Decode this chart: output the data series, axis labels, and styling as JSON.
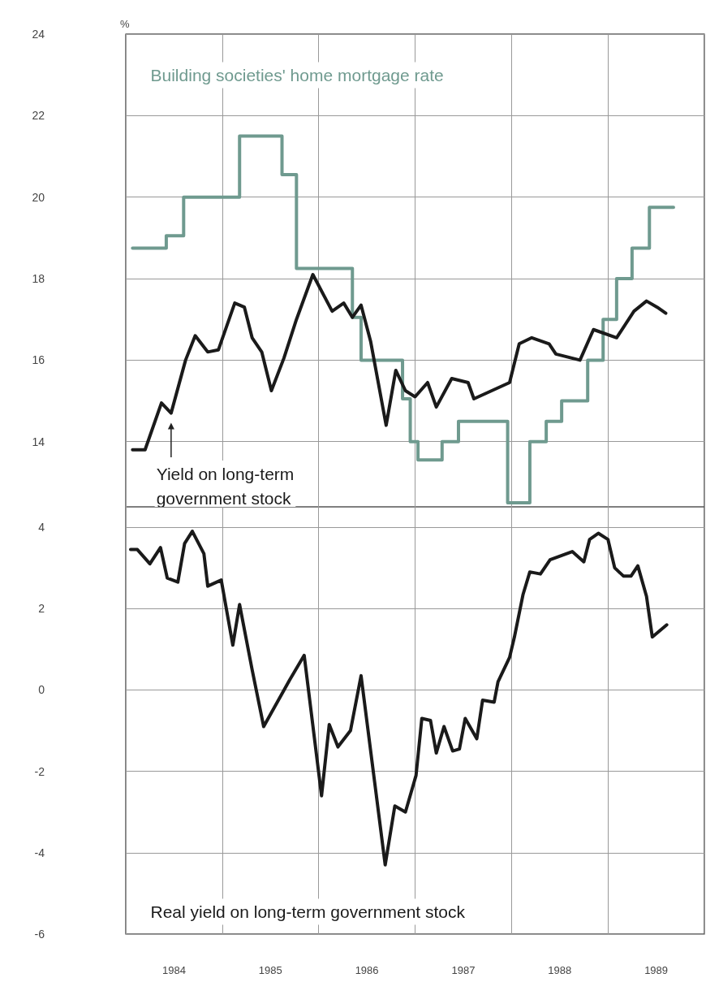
{
  "chart_data": [
    {
      "type": "line",
      "ylabel": "%",
      "xlim": [
        1984,
        1990
      ],
      "xticks": [
        {
          "value": 1984,
          "label": null
        },
        {
          "value": 1985,
          "label": null
        },
        {
          "value": 1986,
          "label": null
        },
        {
          "value": 1987,
          "label": null
        },
        {
          "value": 1988,
          "label": null
        },
        {
          "value": 1989,
          "label": null
        },
        {
          "value": 1990,
          "label": null
        }
      ],
      "ylim": [
        12.4,
        24
      ],
      "yticks": [
        14,
        16,
        18,
        20,
        22,
        24
      ],
      "grid": true,
      "tick_labels": "y",
      "marker": "none",
      "line_style": "solid",
      "series": [
        {
          "name": "Building societies' home mortgage rate",
          "type": "step",
          "color": "#6f9a8f",
          "x": [
            1984.07,
            1984.42,
            1984.6,
            1985.18,
            1985.62,
            1985.77,
            1986.35,
            1986.44,
            1986.87,
            1986.95,
            1987.03,
            1987.28,
            1987.45,
            1987.96,
            1988.19,
            1988.36,
            1988.52,
            1988.79,
            1988.95,
            1989.09,
            1989.25,
            1989.43,
            1989.68
          ],
          "values": [
            18.75,
            19.05,
            20.0,
            21.5,
            20.55,
            18.25,
            17.05,
            16.0,
            15.05,
            14.0,
            13.55,
            14.0,
            14.5,
            12.5,
            14.0,
            14.5,
            15.0,
            16.0,
            17.0,
            18.0,
            18.75,
            19.75,
            19.75
          ]
        },
        {
          "name": "Yield on long-term government stock",
          "type": "line",
          "color": "#1a1a1a",
          "x": [
            1984.07,
            1984.2,
            1984.37,
            1984.47,
            1984.62,
            1984.72,
            1984.85,
            1984.96,
            1985.13,
            1985.23,
            1985.31,
            1985.41,
            1985.51,
            1985.64,
            1985.77,
            1985.94,
            1986.14,
            1986.26,
            1986.35,
            1986.44,
            1986.54,
            1986.7,
            1986.8,
            1986.9,
            1987.0,
            1987.13,
            1987.22,
            1987.38,
            1987.55,
            1987.61,
            1987.98,
            1988.08,
            1988.21,
            1988.39,
            1988.46,
            1988.71,
            1988.85,
            1989.09,
            1989.27,
            1989.4,
            1989.51,
            1989.6
          ],
          "values": [
            13.8,
            13.8,
            14.95,
            14.7,
            16.0,
            16.6,
            16.2,
            16.25,
            17.4,
            17.3,
            16.55,
            16.2,
            15.25,
            16.05,
            17.0,
            18.1,
            17.2,
            17.4,
            17.05,
            17.35,
            16.45,
            14.4,
            15.75,
            15.25,
            15.1,
            15.45,
            14.85,
            15.55,
            15.45,
            15.05,
            15.45,
            16.4,
            16.55,
            16.4,
            16.15,
            16.0,
            16.75,
            16.55,
            17.2,
            17.45,
            17.3,
            17.15
          ]
        }
      ]
    },
    {
      "type": "line",
      "xlim": [
        1984,
        1990
      ],
      "xticks": [
        {
          "value": 1984,
          "label": null
        },
        {
          "value": 1984.5,
          "label": "1984"
        },
        {
          "value": 1985,
          "label": null
        },
        {
          "value": 1985.5,
          "label": "1985"
        },
        {
          "value": 1986,
          "label": null
        },
        {
          "value": 1986.5,
          "label": "1986"
        },
        {
          "value": 1987,
          "label": null
        },
        {
          "value": 1987.5,
          "label": "1987"
        },
        {
          "value": 1988,
          "label": null
        },
        {
          "value": 1988.5,
          "label": "1988"
        },
        {
          "value": 1989,
          "label": null
        },
        {
          "value": 1989.5,
          "label": "1989"
        },
        {
          "value": 1990,
          "label": null
        }
      ],
      "ylim": [
        -6,
        4.5
      ],
      "yticks": [
        -6,
        -4,
        -2,
        0,
        2,
        4
      ],
      "grid": true,
      "marker": "none",
      "line_style": "solid",
      "series": [
        {
          "name": "Real yield on long-term government stock",
          "type": "line",
          "color": "#1a1a1a",
          "x": [
            1984.05,
            1984.12,
            1984.25,
            1984.36,
            1984.43,
            1984.54,
            1984.61,
            1984.69,
            1984.81,
            1984.85,
            1984.99,
            1985.11,
            1985.18,
            1985.31,
            1985.43,
            1985.7,
            1985.85,
            1986.03,
            1986.11,
            1986.2,
            1986.33,
            1986.44,
            1986.58,
            1986.69,
            1986.79,
            1986.9,
            1987.01,
            1987.07,
            1987.16,
            1987.22,
            1987.3,
            1987.39,
            1987.46,
            1987.52,
            1987.64,
            1987.7,
            1987.82,
            1987.86,
            1987.98,
            1988.03,
            1988.12,
            1988.19,
            1988.3,
            1988.4,
            1988.63,
            1988.75,
            1988.81,
            1988.9,
            1989.0,
            1989.07,
            1989.16,
            1989.24,
            1989.31,
            1989.4,
            1989.46,
            1989.61
          ],
          "values": [
            3.45,
            3.45,
            3.1,
            3.5,
            2.75,
            2.65,
            3.6,
            3.9,
            3.35,
            2.55,
            2.7,
            1.1,
            2.1,
            0.5,
            -0.9,
            0.25,
            0.85,
            -2.6,
            -0.85,
            -1.4,
            -1.0,
            0.35,
            -2.25,
            -4.3,
            -2.85,
            -3.0,
            -2.1,
            -0.7,
            -0.75,
            -1.55,
            -0.9,
            -1.5,
            -1.45,
            -0.7,
            -1.2,
            -0.25,
            -0.3,
            0.2,
            0.8,
            1.3,
            2.35,
            2.9,
            2.85,
            3.2,
            3.4,
            3.15,
            3.7,
            3.85,
            3.7,
            3.0,
            2.8,
            2.8,
            3.05,
            2.3,
            1.3,
            1.6
          ]
        }
      ]
    }
  ]
}
